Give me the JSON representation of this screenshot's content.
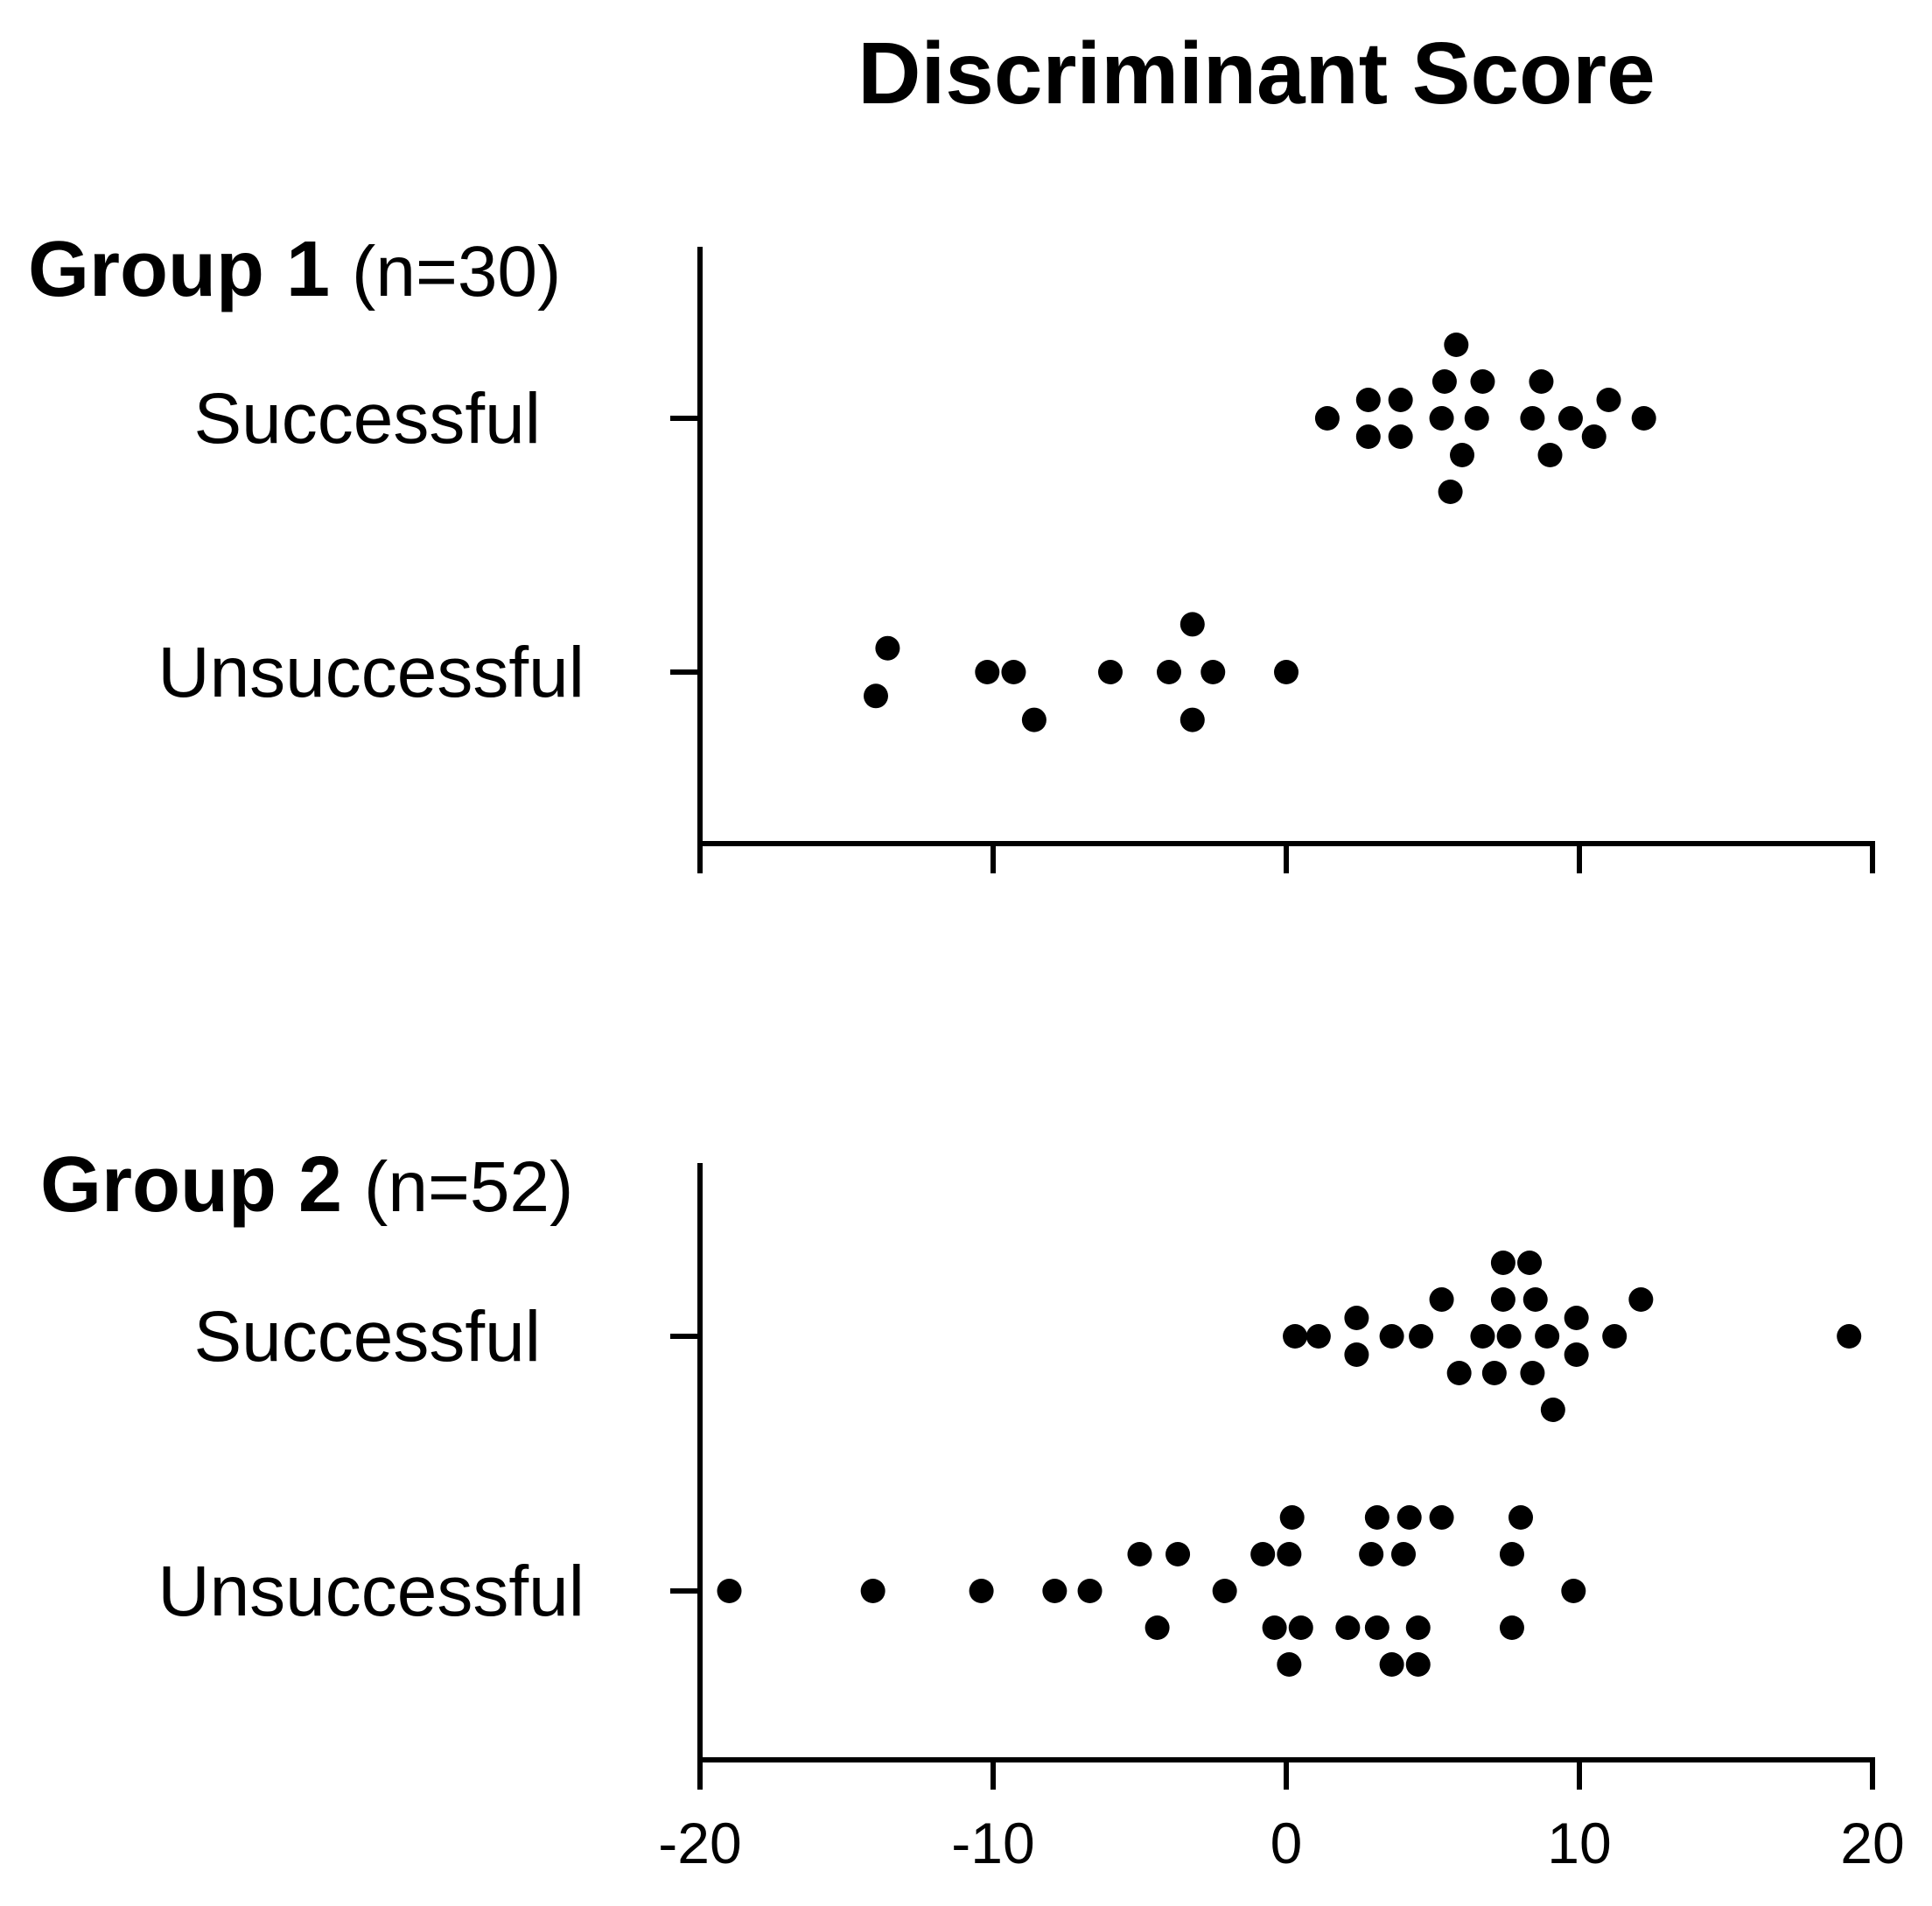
{
  "chart_data": {
    "type": "scatter",
    "title": "Discriminant Score",
    "xlim": [
      -20,
      20
    ],
    "xticks": [
      "-20",
      "-10",
      "0",
      "10",
      "20"
    ],
    "panels": [
      {
        "group": "Group 1",
        "n_label": "(n=30)",
        "categories": [
          {
            "label": "Successful",
            "points": [
              {
                "x": 5.8,
                "lane": 2
              },
              {
                "x": 5.4,
                "lane": 1
              },
              {
                "x": 6.7,
                "lane": 1
              },
              {
                "x": 8.7,
                "lane": 1
              },
              {
                "x": 2.8,
                "lane": 0.5
              },
              {
                "x": 3.9,
                "lane": 0.5
              },
              {
                "x": 11.0,
                "lane": 0.5
              },
              {
                "x": 1.4,
                "lane": 0
              },
              {
                "x": 5.3,
                "lane": 0
              },
              {
                "x": 6.5,
                "lane": 0
              },
              {
                "x": 8.4,
                "lane": 0
              },
              {
                "x": 9.7,
                "lane": 0
              },
              {
                "x": 12.2,
                "lane": 0
              },
              {
                "x": 2.8,
                "lane": -0.5
              },
              {
                "x": 3.9,
                "lane": -0.5
              },
              {
                "x": 10.5,
                "lane": -0.5
              },
              {
                "x": 6.0,
                "lane": -1
              },
              {
                "x": 9.0,
                "lane": -1
              },
              {
                "x": 5.6,
                "lane": -2
              }
            ]
          },
          {
            "label": "Unsuccessful",
            "points": [
              {
                "x": -3.2,
                "lane": 1.3
              },
              {
                "x": -13.6,
                "lane": 0.65
              },
              {
                "x": -10.2,
                "lane": 0
              },
              {
                "x": -9.3,
                "lane": 0
              },
              {
                "x": -6.0,
                "lane": 0
              },
              {
                "x": -4.0,
                "lane": 0
              },
              {
                "x": -2.5,
                "lane": 0
              },
              {
                "x": 0.0,
                "lane": 0
              },
              {
                "x": -14.0,
                "lane": -0.65
              },
              {
                "x": -8.6,
                "lane": -1.3
              },
              {
                "x": -3.2,
                "lane": -1.3
              }
            ]
          }
        ]
      },
      {
        "group": "Group 2",
        "n_label": "(n=52)",
        "categories": [
          {
            "label": "Successful",
            "points": [
              {
                "x": 7.4,
                "lane": 2
              },
              {
                "x": 8.3,
                "lane": 2
              },
              {
                "x": 5.3,
                "lane": 1
              },
              {
                "x": 7.4,
                "lane": 1
              },
              {
                "x": 8.5,
                "lane": 1
              },
              {
                "x": 12.1,
                "lane": 1
              },
              {
                "x": 2.4,
                "lane": 0.5
              },
              {
                "x": 9.9,
                "lane": 0.5
              },
              {
                "x": 0.3,
                "lane": 0
              },
              {
                "x": 1.1,
                "lane": 0
              },
              {
                "x": 3.6,
                "lane": 0
              },
              {
                "x": 4.6,
                "lane": 0
              },
              {
                "x": 6.7,
                "lane": 0
              },
              {
                "x": 7.6,
                "lane": 0
              },
              {
                "x": 8.9,
                "lane": 0
              },
              {
                "x": 11.2,
                "lane": 0
              },
              {
                "x": 19.2,
                "lane": 0
              },
              {
                "x": 2.4,
                "lane": -0.5
              },
              {
                "x": 9.9,
                "lane": -0.5
              },
              {
                "x": 5.9,
                "lane": -1
              },
              {
                "x": 7.1,
                "lane": -1
              },
              {
                "x": 8.4,
                "lane": -1
              },
              {
                "x": 9.1,
                "lane": -2
              }
            ]
          },
          {
            "label": "Unsuccessful",
            "points": [
              {
                "x": 0.2,
                "lane": 2
              },
              {
                "x": 3.1,
                "lane": 2
              },
              {
                "x": 4.2,
                "lane": 2
              },
              {
                "x": 5.3,
                "lane": 2
              },
              {
                "x": 8.0,
                "lane": 2
              },
              {
                "x": -5.0,
                "lane": 1
              },
              {
                "x": -3.7,
                "lane": 1
              },
              {
                "x": -0.8,
                "lane": 1
              },
              {
                "x": 0.1,
                "lane": 1
              },
              {
                "x": 2.9,
                "lane": 1
              },
              {
                "x": 4.0,
                "lane": 1
              },
              {
                "x": 7.7,
                "lane": 1
              },
              {
                "x": -19.0,
                "lane": 0
              },
              {
                "x": -14.1,
                "lane": 0
              },
              {
                "x": -10.4,
                "lane": 0
              },
              {
                "x": -7.9,
                "lane": 0
              },
              {
                "x": -6.7,
                "lane": 0
              },
              {
                "x": -2.1,
                "lane": 0
              },
              {
                "x": 9.8,
                "lane": 0
              },
              {
                "x": -4.4,
                "lane": -1
              },
              {
                "x": -0.4,
                "lane": -1
              },
              {
                "x": 0.5,
                "lane": -1
              },
              {
                "x": 2.1,
                "lane": -1
              },
              {
                "x": 3.1,
                "lane": -1
              },
              {
                "x": 4.5,
                "lane": -1
              },
              {
                "x": 7.7,
                "lane": -1
              },
              {
                "x": 0.1,
                "lane": -2
              },
              {
                "x": 3.6,
                "lane": -2
              },
              {
                "x": 4.5,
                "lane": -2
              }
            ]
          }
        ]
      }
    ]
  }
}
